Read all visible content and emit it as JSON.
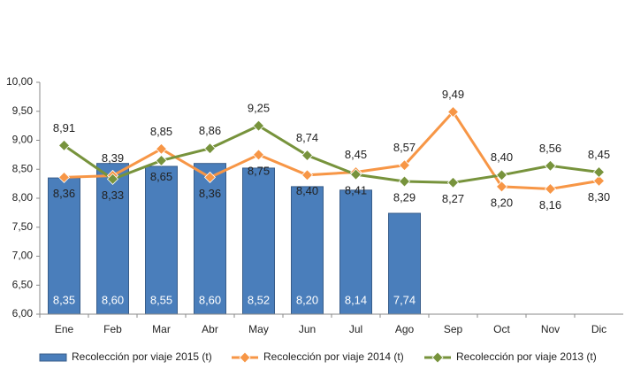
{
  "chart_data": {
    "type": "bar-line",
    "categories": [
      "Ene",
      "Feb",
      "Mar",
      "Abr",
      "May",
      "Jun",
      "Jul",
      "Ago",
      "Sep",
      "Oct",
      "Nov",
      "Dic"
    ],
    "series": [
      {
        "name": "Recolección por viaje 2015 (t)",
        "type": "bar",
        "color": "#4a7ebb",
        "values": [
          8.35,
          8.6,
          8.55,
          8.6,
          8.52,
          8.2,
          8.14,
          7.74,
          null,
          null,
          null,
          null
        ],
        "value_labels": [
          "8,35",
          "8,60",
          "8,55",
          "8,60",
          "8,52",
          "8,20",
          "8,14",
          "7,74",
          null,
          null,
          null,
          null
        ]
      },
      {
        "name": "Recolección por viaje 2014 (t)",
        "type": "line",
        "color": "#f79646",
        "values": [
          8.36,
          8.39,
          8.85,
          8.36,
          8.75,
          8.4,
          8.45,
          8.57,
          9.49,
          8.2,
          8.16,
          8.3
        ],
        "value_labels": [
          "8,36",
          "8,39",
          "8,85",
          "8,36",
          "8,75",
          "8,40",
          "8,45",
          "8,57",
          "9,49",
          "8,20",
          "8,16",
          "8,30"
        ]
      },
      {
        "name": "Recolección por viaje 2013 (t)",
        "type": "line",
        "color": "#77933c",
        "values": [
          8.91,
          8.33,
          8.65,
          8.86,
          9.25,
          8.74,
          8.41,
          8.29,
          8.27,
          8.4,
          8.56,
          8.45
        ],
        "value_labels": [
          "8,91",
          "8,33",
          "8,65",
          "8,86",
          "9,25",
          "8,74",
          "8,41",
          "8,29",
          "8,27",
          "8,40",
          "8,56",
          "8,45"
        ]
      }
    ],
    "ylim": [
      6,
      10
    ],
    "yticks": [
      {
        "value": 6,
        "label": "6,00"
      },
      {
        "value": 6.5,
        "label": "6,50"
      },
      {
        "value": 7,
        "label": "7,00"
      },
      {
        "value": 7.5,
        "label": "7,50"
      },
      {
        "value": 8,
        "label": "8,00"
      },
      {
        "value": 8.5,
        "label": "8,50"
      },
      {
        "value": 9,
        "label": "9,00"
      },
      {
        "value": 9.5,
        "label": "9,50"
      },
      {
        "value": 10,
        "label": "10,00"
      }
    ],
    "legend": "bottom"
  }
}
